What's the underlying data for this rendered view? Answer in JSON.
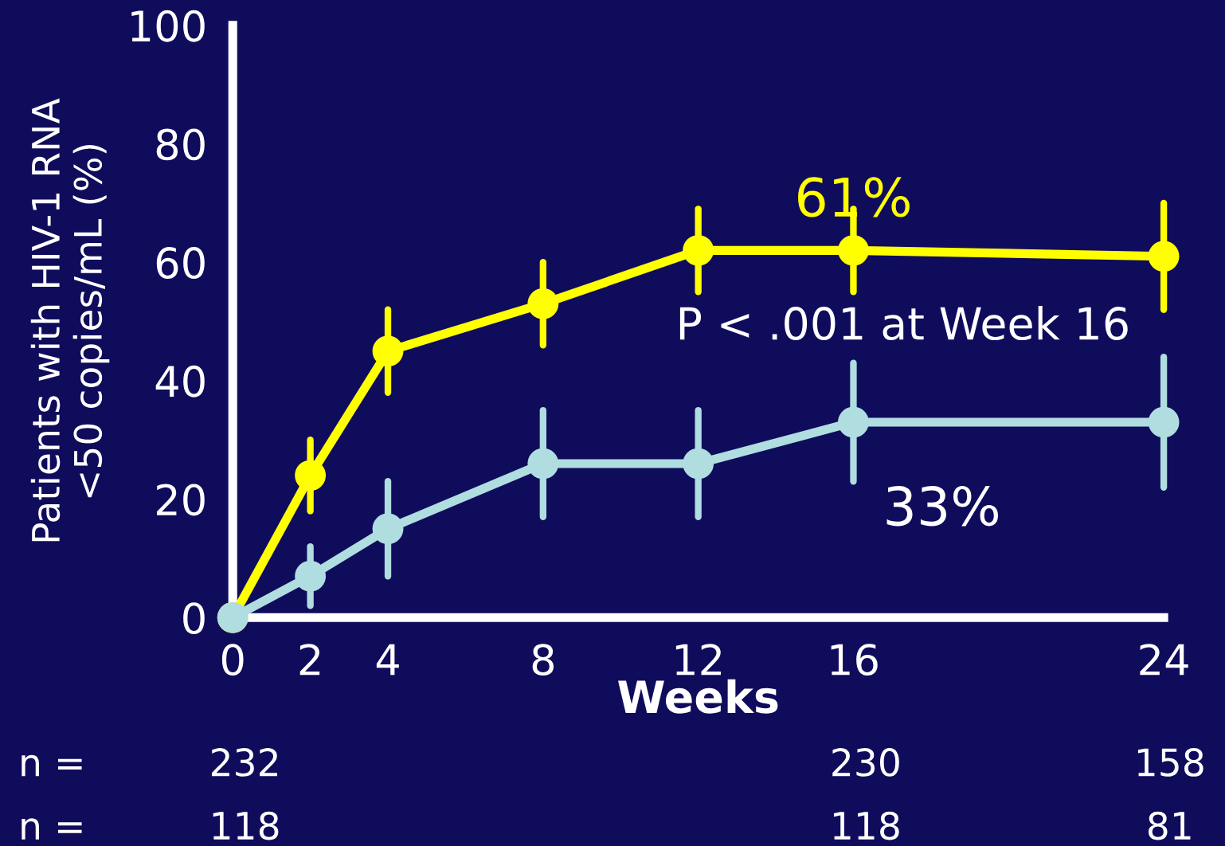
{
  "chart_data": {
    "type": "line",
    "x": [
      0,
      2,
      4,
      8,
      12,
      16,
      24
    ],
    "series": [
      {
        "color": "#ffff00",
        "values": [
          0,
          24,
          45,
          53,
          62,
          62,
          61
        ],
        "errors": [
          null,
          6,
          7,
          7,
          7,
          7,
          9
        ]
      },
      {
        "color": "#b0dde0",
        "values": [
          0,
          7,
          15,
          26,
          26,
          33,
          33
        ],
        "errors": [
          null,
          5,
          8,
          9,
          9,
          10,
          11
        ]
      }
    ],
    "xlabel": "Weeks",
    "ylabel": "Patients with HIV-1 RNA\n<50 copies/mL (%)",
    "xlim": [
      0,
      24
    ],
    "xticks": [
      0,
      2,
      4,
      8,
      12,
      16,
      24
    ],
    "ylim": [
      0,
      100
    ],
    "yticks": [
      0,
      20,
      40,
      60,
      80,
      100
    ],
    "marker": "circle",
    "grid": false,
    "legend": false,
    "annotations": [
      {
        "text": "61%",
        "x": 16,
        "y": 62
      },
      {
        "text": "33%",
        "x": 16,
        "y": 33
      },
      "P < .001 at Week 16",
      "n =",
      "232",
      "230",
      "158",
      "n =",
      "118",
      "118",
      "81"
    ]
  }
}
